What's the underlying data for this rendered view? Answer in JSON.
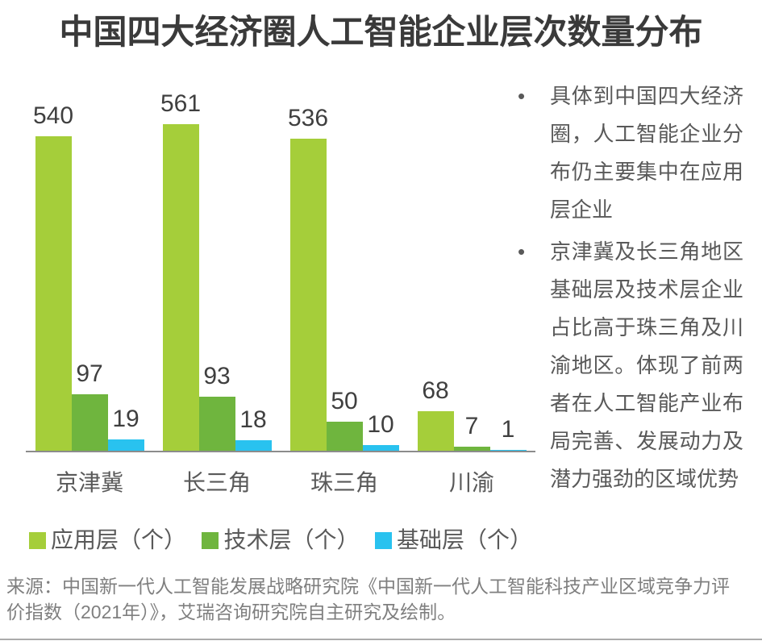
{
  "title": "中国四大经济圈人工智能企业层次数量分布",
  "chart_data": {
    "type": "bar",
    "categories": [
      "京津冀",
      "长三角",
      "珠三角",
      "川渝"
    ],
    "series": [
      {
        "name": "应用层（个）",
        "color": "#A5CE3A",
        "values": [
          540,
          561,
          536,
          68
        ]
      },
      {
        "name": "技术层（个）",
        "color": "#6FB53E",
        "values": [
          97,
          93,
          50,
          7
        ]
      },
      {
        "name": "基础层（个）",
        "color": "#29C2EF",
        "values": [
          19,
          18,
          10,
          1
        ]
      }
    ],
    "title": "中国四大经济圈人工智能企业层次数量分布",
    "xlabel": "",
    "ylabel": "",
    "ylim": [
      0,
      561
    ],
    "grid": false,
    "y_axis_visible": false,
    "value_labels": "above-bars",
    "legend_position": "bottom"
  },
  "notes": {
    "bullet_glyph": "•",
    "items": [
      "具体到中国四大经济圈，人工智能企业分布仍主要集中在应用层企业",
      "京津冀及长三角地区基础层及技术层企业占比高于珠三角及川渝地区。体现了前两者在人工智能产业布局完善、发展动力及潜力强劲的区域优势"
    ]
  },
  "source": "来源：中国新一代人工智能发展战略研究院《中国新一代人工智能科技产业区域竞争力评价指数（2021年）》，艾瑞咨询研究院自主研究及绘制。",
  "colors": {
    "title_text": "#3A3A3A",
    "value_label_text": "#3F3F3F",
    "axis_line": "#8C8C8C",
    "category_text": "#595959",
    "legend_text": "#595959",
    "note_text": "#595959",
    "source_text": "#7F7F7F",
    "bottom_rule": "#ABABAB",
    "background": "#FFFFFF"
  }
}
